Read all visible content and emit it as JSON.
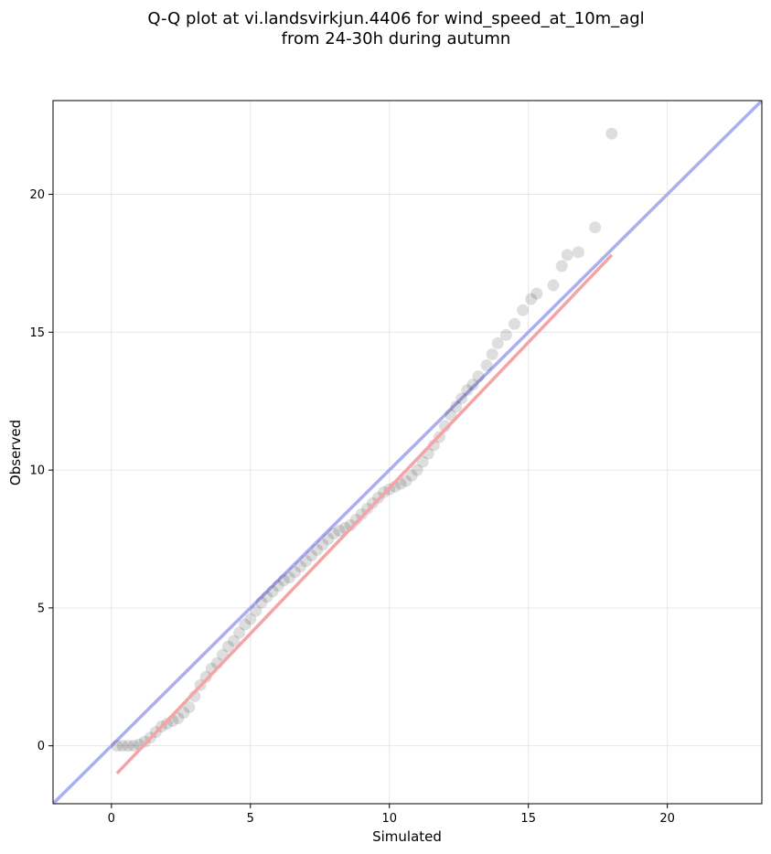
{
  "chart_data": {
    "type": "scatter",
    "title": [
      "Q-Q plot at vi.landsvirkjun.4406 for wind_speed_at_10m_agl",
      "from 24-30h during autumn"
    ],
    "x_label": "Simulated",
    "y_label": "Observed",
    "xlim": [
      -2.1,
      23.4
    ],
    "ylim": [
      -2.1,
      23.4
    ],
    "xticks": [
      0,
      5,
      10,
      15,
      20
    ],
    "yticks": [
      0,
      5,
      10,
      15,
      20
    ],
    "grid": true,
    "color": "#000000",
    "x": [
      0.2,
      0.4,
      0.6,
      0.8,
      1.0,
      1.2,
      1.4,
      1.6,
      1.8,
      2.0,
      2.2,
      2.4,
      2.6,
      2.8,
      3.0,
      3.2,
      3.4,
      3.6,
      3.8,
      4.0,
      4.2,
      4.4,
      4.6,
      4.8,
      5.0,
      5.2,
      5.4,
      5.6,
      5.8,
      6.0,
      6.2,
      6.4,
      6.6,
      6.8,
      7.0,
      7.2,
      7.4,
      7.6,
      7.8,
      8.0,
      8.2,
      8.4,
      8.6,
      8.8,
      9.0,
      9.2,
      9.4,
      9.6,
      9.8,
      10.0,
      10.2,
      10.4,
      10.6,
      10.8,
      11.0,
      11.2,
      11.4,
      11.6,
      11.8,
      12.0,
      12.2,
      12.4,
      12.6,
      12.8,
      13.0,
      13.2,
      13.5,
      13.7,
      13.9,
      14.2,
      14.5,
      14.8,
      15.1,
      15.3,
      15.9,
      16.2,
      16.4,
      16.8,
      17.4,
      18.0
    ],
    "y": [
      0,
      0,
      0,
      0,
      0.05,
      0.15,
      0.3,
      0.5,
      0.7,
      0.8,
      0.9,
      1.0,
      1.2,
      1.4,
      1.8,
      2.2,
      2.5,
      2.8,
      3.0,
      3.3,
      3.6,
      3.8,
      4.1,
      4.4,
      4.6,
      4.9,
      5.2,
      5.4,
      5.6,
      5.8,
      6.0,
      6.1,
      6.3,
      6.5,
      6.7,
      6.9,
      7.1,
      7.3,
      7.5,
      7.7,
      7.8,
      7.9,
      8.0,
      8.2,
      8.4,
      8.6,
      8.8,
      9.0,
      9.2,
      9.3,
      9.4,
      9.5,
      9.6,
      9.8,
      10.0,
      10.3,
      10.6,
      10.9,
      11.2,
      11.6,
      12.0,
      12.3,
      12.6,
      12.9,
      13.1,
      13.4,
      13.8,
      14.2,
      14.6,
      14.9,
      15.3,
      15.8,
      16.2,
      16.4,
      16.7,
      17.4,
      17.8,
      17.9,
      18.8,
      22.2
    ],
    "reference_line": {
      "color": "#a9aff0",
      "x": [
        -2.1,
        23.4
      ],
      "y": [
        -2.1,
        23.4
      ]
    },
    "fit_line": {
      "color": "#f4a3a6",
      "x": [
        0.2,
        18.0
      ],
      "y": [
        -1.0,
        17.8
      ]
    }
  }
}
